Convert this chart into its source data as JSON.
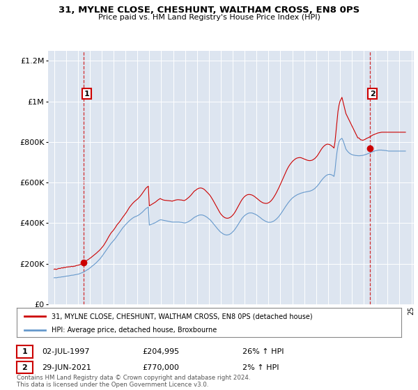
{
  "title": "31, MYLNE CLOSE, CHESHUNT, WALTHAM CROSS, EN8 0PS",
  "subtitle": "Price paid vs. HM Land Registry's House Price Index (HPI)",
  "legend_label_red": "31, MYLNE CLOSE, CHESHUNT, WALTHAM CROSS, EN8 0PS (detached house)",
  "legend_label_blue": "HPI: Average price, detached house, Broxbourne",
  "annotation1_date": "02-JUL-1997",
  "annotation1_price": "£204,995",
  "annotation1_hpi": "26% ↑ HPI",
  "annotation2_date": "29-JUN-2021",
  "annotation2_price": "£770,000",
  "annotation2_hpi": "2% ↑ HPI",
  "footer": "Contains HM Land Registry data © Crown copyright and database right 2024.\nThis data is licensed under the Open Government Licence v3.0.",
  "ylim": [
    0,
    1250000
  ],
  "yticks": [
    0,
    200000,
    400000,
    600000,
    800000,
    1000000,
    1200000
  ],
  "ytick_labels": [
    "£0",
    "£200K",
    "£400K",
    "£600K",
    "£800K",
    "£1M",
    "£1.2M"
  ],
  "x_start_year": 1995,
  "x_end_year": 2025,
  "plot_bg_color": "#dde5f0",
  "fig_bg_color": "#ffffff",
  "red_color": "#cc0000",
  "blue_color": "#6699cc",
  "sale1_year": 1997.5,
  "sale1_value": 204995,
  "sale2_year": 2021.5,
  "sale2_value": 770000,
  "red_line_x": [
    1995.0,
    1995.083,
    1995.167,
    1995.25,
    1995.333,
    1995.417,
    1995.5,
    1995.583,
    1995.667,
    1995.75,
    1995.833,
    1995.917,
    1996.0,
    1996.083,
    1996.167,
    1996.25,
    1996.333,
    1996.417,
    1996.5,
    1996.583,
    1996.667,
    1996.75,
    1996.833,
    1996.917,
    1997.0,
    1997.083,
    1997.167,
    1997.25,
    1997.333,
    1997.417,
    1997.5,
    1997.583,
    1997.667,
    1997.75,
    1997.833,
    1997.917,
    1998.0,
    1998.083,
    1998.167,
    1998.25,
    1998.333,
    1998.417,
    1998.5,
    1998.583,
    1998.667,
    1998.75,
    1998.833,
    1998.917,
    1999.0,
    1999.083,
    1999.167,
    1999.25,
    1999.333,
    1999.417,
    1999.5,
    1999.583,
    1999.667,
    1999.75,
    1999.833,
    1999.917,
    2000.0,
    2000.083,
    2000.167,
    2000.25,
    2000.333,
    2000.417,
    2000.5,
    2000.583,
    2000.667,
    2000.75,
    2000.833,
    2000.917,
    2001.0,
    2001.083,
    2001.167,
    2001.25,
    2001.333,
    2001.417,
    2001.5,
    2001.583,
    2001.667,
    2001.75,
    2001.833,
    2001.917,
    2002.0,
    2002.083,
    2002.167,
    2002.25,
    2002.333,
    2002.417,
    2002.5,
    2002.583,
    2002.667,
    2002.75,
    2002.833,
    2002.917,
    2003.0,
    2003.083,
    2003.167,
    2003.25,
    2003.333,
    2003.417,
    2003.5,
    2003.583,
    2003.667,
    2003.75,
    2003.833,
    2003.917,
    2004.0,
    2004.083,
    2004.167,
    2004.25,
    2004.333,
    2004.417,
    2004.5,
    2004.583,
    2004.667,
    2004.75,
    2004.833,
    2004.917,
    2005.0,
    2005.083,
    2005.167,
    2005.25,
    2005.333,
    2005.417,
    2005.5,
    2005.583,
    2005.667,
    2005.75,
    2005.833,
    2005.917,
    2006.0,
    2006.083,
    2006.167,
    2006.25,
    2006.333,
    2006.417,
    2006.5,
    2006.583,
    2006.667,
    2006.75,
    2006.833,
    2006.917,
    2007.0,
    2007.083,
    2007.167,
    2007.25,
    2007.333,
    2007.417,
    2007.5,
    2007.583,
    2007.667,
    2007.75,
    2007.833,
    2007.917,
    2008.0,
    2008.083,
    2008.167,
    2008.25,
    2008.333,
    2008.417,
    2008.5,
    2008.583,
    2008.667,
    2008.75,
    2008.833,
    2008.917,
    2009.0,
    2009.083,
    2009.167,
    2009.25,
    2009.333,
    2009.417,
    2009.5,
    2009.583,
    2009.667,
    2009.75,
    2009.833,
    2009.917,
    2010.0,
    2010.083,
    2010.167,
    2010.25,
    2010.333,
    2010.417,
    2010.5,
    2010.583,
    2010.667,
    2010.75,
    2010.833,
    2010.917,
    2011.0,
    2011.083,
    2011.167,
    2011.25,
    2011.333,
    2011.417,
    2011.5,
    2011.583,
    2011.667,
    2011.75,
    2011.833,
    2011.917,
    2012.0,
    2012.083,
    2012.167,
    2012.25,
    2012.333,
    2012.417,
    2012.5,
    2012.583,
    2012.667,
    2012.75,
    2012.833,
    2012.917,
    2013.0,
    2013.083,
    2013.167,
    2013.25,
    2013.333,
    2013.417,
    2013.5,
    2013.583,
    2013.667,
    2013.75,
    2013.833,
    2013.917,
    2014.0,
    2014.083,
    2014.167,
    2014.25,
    2014.333,
    2014.417,
    2014.5,
    2014.583,
    2014.667,
    2014.75,
    2014.833,
    2014.917,
    2015.0,
    2015.083,
    2015.167,
    2015.25,
    2015.333,
    2015.417,
    2015.5,
    2015.583,
    2015.667,
    2015.75,
    2015.833,
    2015.917,
    2016.0,
    2016.083,
    2016.167,
    2016.25,
    2016.333,
    2016.417,
    2016.5,
    2016.583,
    2016.667,
    2016.75,
    2016.833,
    2016.917,
    2017.0,
    2017.083,
    2017.167,
    2017.25,
    2017.333,
    2017.417,
    2017.5,
    2017.583,
    2017.667,
    2017.75,
    2017.833,
    2017.917,
    2018.0,
    2018.083,
    2018.167,
    2018.25,
    2018.333,
    2018.417,
    2018.5,
    2018.583,
    2018.667,
    2018.75,
    2018.833,
    2018.917,
    2019.0,
    2019.083,
    2019.167,
    2019.25,
    2019.333,
    2019.417,
    2019.5,
    2019.583,
    2019.667,
    2019.75,
    2019.833,
    2019.917,
    2020.0,
    2020.083,
    2020.167,
    2020.25,
    2020.333,
    2020.417,
    2020.5,
    2020.583,
    2020.667,
    2020.75,
    2020.833,
    2020.917,
    2021.0,
    2021.083,
    2021.167,
    2021.25,
    2021.333,
    2021.417,
    2021.5,
    2021.583,
    2021.667,
    2021.75,
    2021.833,
    2021.917,
    2022.0,
    2022.083,
    2022.167,
    2022.25,
    2022.333,
    2022.417,
    2022.5,
    2022.583,
    2022.667,
    2022.75,
    2022.833,
    2022.917,
    2023.0,
    2023.083,
    2023.167,
    2023.25,
    2023.333,
    2023.417,
    2023.5,
    2023.583,
    2023.667,
    2023.75,
    2023.833,
    2023.917,
    2024.0,
    2024.083,
    2024.167,
    2024.25,
    2024.333,
    2024.417,
    2024.5
  ],
  "red_line_y": [
    172000,
    174000,
    171000,
    173000,
    175000,
    177000,
    176000,
    178000,
    180000,
    178000,
    182000,
    180000,
    182000,
    184000,
    183000,
    185000,
    184000,
    186000,
    187000,
    185000,
    188000,
    187000,
    190000,
    191000,
    192000,
    193000,
    195000,
    197000,
    200000,
    202000,
    204995,
    208000,
    212000,
    216000,
    219000,
    222000,
    226000,
    229000,
    233000,
    237000,
    241000,
    245000,
    249000,
    253000,
    258000,
    262000,
    267000,
    272000,
    278000,
    284000,
    290000,
    298000,
    306000,
    314000,
    323000,
    332000,
    340000,
    348000,
    355000,
    360000,
    366000,
    373000,
    380000,
    388000,
    395000,
    400000,
    406000,
    413000,
    420000,
    427000,
    434000,
    440000,
    447000,
    454000,
    462000,
    470000,
    478000,
    484000,
    490000,
    496000,
    501000,
    506000,
    510000,
    514000,
    518000,
    523000,
    528000,
    534000,
    540000,
    547000,
    554000,
    561000,
    568000,
    574000,
    578000,
    582000,
    485000,
    488000,
    491000,
    494000,
    497000,
    500000,
    503000,
    507000,
    511000,
    515000,
    518000,
    521000,
    518000,
    516000,
    514000,
    513000,
    512000,
    512000,
    511000,
    511000,
    510000,
    510000,
    509000,
    508000,
    510000,
    511000,
    513000,
    514000,
    515000,
    515000,
    515000,
    514000,
    514000,
    513000,
    512000,
    511000,
    513000,
    516000,
    520000,
    524000,
    528000,
    533000,
    538000,
    544000,
    550000,
    556000,
    560000,
    563000,
    567000,
    570000,
    572000,
    573000,
    573000,
    572000,
    570000,
    567000,
    563000,
    558000,
    553000,
    548000,
    543000,
    537000,
    530000,
    522000,
    514000,
    505000,
    496000,
    487000,
    478000,
    469000,
    460000,
    452000,
    445000,
    439000,
    434000,
    430000,
    427000,
    425000,
    424000,
    424000,
    425000,
    427000,
    430000,
    434000,
    439000,
    445000,
    452000,
    460000,
    469000,
    478000,
    487000,
    496000,
    505000,
    513000,
    520000,
    526000,
    531000,
    535000,
    538000,
    540000,
    541000,
    541000,
    540000,
    539000,
    537000,
    534000,
    531000,
    527000,
    523000,
    519000,
    515000,
    511000,
    507000,
    504000,
    501000,
    499000,
    498000,
    497000,
    497000,
    498000,
    500000,
    503000,
    507000,
    512000,
    518000,
    525000,
    533000,
    541000,
    550000,
    560000,
    570000,
    580000,
    591000,
    602000,
    614000,
    625000,
    636000,
    647000,
    657000,
    667000,
    676000,
    684000,
    691000,
    697000,
    703000,
    708000,
    712000,
    716000,
    719000,
    721000,
    722000,
    723000,
    723000,
    722000,
    720000,
    718000,
    716000,
    714000,
    712000,
    710000,
    709000,
    708000,
    708000,
    709000,
    710000,
    713000,
    716000,
    720000,
    725000,
    731000,
    738000,
    746000,
    754000,
    762000,
    769000,
    775000,
    780000,
    784000,
    787000,
    789000,
    789000,
    788000,
    786000,
    783000,
    779000,
    775000,
    770000,
    800000,
    850000,
    900000,
    950000,
    980000,
    1000000,
    1010000,
    1020000,
    1000000,
    980000,
    960000,
    940000,
    930000,
    920000,
    910000,
    900000,
    890000,
    880000,
    870000,
    860000,
    850000,
    840000,
    830000,
    820000,
    820000,
    815000,
    810000,
    810000,
    808000,
    810000,
    812000,
    815000,
    818000,
    820000,
    822000,
    825000,
    828000,
    831000,
    834000,
    836000,
    838000,
    840000,
    842000,
    844000,
    845000,
    846000,
    847000,
    848000,
    848000,
    848000,
    848000,
    848000,
    848000,
    848000,
    848000,
    848000,
    848000,
    848000,
    848000,
    848000,
    848000,
    848000,
    848000,
    848000,
    848000,
    848000,
    848000,
    848000,
    848000,
    848000,
    848000,
    848000
  ],
  "blue_line_y": [
    130000,
    131000,
    130000,
    131000,
    132000,
    133000,
    133000,
    134000,
    135000,
    135000,
    136000,
    137000,
    138000,
    139000,
    139000,
    140000,
    141000,
    142000,
    143000,
    143000,
    144000,
    145000,
    146000,
    147000,
    148000,
    149000,
    151000,
    153000,
    155000,
    157000,
    159000,
    162000,
    165000,
    168000,
    171000,
    174000,
    178000,
    182000,
    186000,
    190000,
    194000,
    198000,
    202000,
    207000,
    212000,
    217000,
    222000,
    228000,
    234000,
    241000,
    248000,
    255000,
    262000,
    269000,
    276000,
    283000,
    290000,
    297000,
    303000,
    308000,
    314000,
    320000,
    326000,
    333000,
    340000,
    347000,
    354000,
    361000,
    368000,
    375000,
    381000,
    386000,
    392000,
    397000,
    402000,
    407000,
    412000,
    416000,
    420000,
    424000,
    427000,
    430000,
    432000,
    434000,
    436000,
    439000,
    442000,
    446000,
    450000,
    454000,
    459000,
    464000,
    469000,
    473000,
    476000,
    479000,
    390000,
    392000,
    394000,
    396000,
    398000,
    400000,
    402000,
    405000,
    408000,
    411000,
    414000,
    416000,
    416000,
    415000,
    414000,
    413000,
    412000,
    411000,
    410000,
    409000,
    408000,
    407000,
    406000,
    405000,
    405000,
    405000,
    405000,
    405000,
    405000,
    405000,
    405000,
    404000,
    404000,
    403000,
    402000,
    401000,
    401000,
    402000,
    404000,
    406000,
    409000,
    412000,
    415000,
    419000,
    423000,
    427000,
    430000,
    432000,
    435000,
    437000,
    439000,
    440000,
    440000,
    440000,
    439000,
    437000,
    435000,
    432000,
    429000,
    425000,
    421000,
    417000,
    412000,
    406000,
    400000,
    394000,
    388000,
    382000,
    376000,
    370000,
    365000,
    359000,
    355000,
    351000,
    348000,
    345000,
    343000,
    342000,
    341000,
    342000,
    343000,
    345000,
    348000,
    352000,
    357000,
    362000,
    368000,
    375000,
    382000,
    390000,
    398000,
    406000,
    414000,
    421000,
    427000,
    432000,
    437000,
    441000,
    444000,
    447000,
    449000,
    450000,
    450000,
    450000,
    449000,
    447000,
    445000,
    443000,
    440000,
    437000,
    433000,
    430000,
    426000,
    422000,
    418000,
    415000,
    412000,
    409000,
    407000,
    405000,
    404000,
    404000,
    404000,
    405000,
    407000,
    409000,
    412000,
    416000,
    420000,
    425000,
    430000,
    436000,
    443000,
    450000,
    457000,
    465000,
    472000,
    480000,
    487000,
    494000,
    501000,
    507000,
    513000,
    518000,
    523000,
    527000,
    531000,
    534000,
    537000,
    540000,
    542000,
    544000,
    546000,
    548000,
    549000,
    551000,
    552000,
    553000,
    554000,
    555000,
    556000,
    557000,
    558000,
    560000,
    562000,
    565000,
    568000,
    572000,
    577000,
    582000,
    588000,
    594000,
    601000,
    608000,
    614000,
    620000,
    625000,
    630000,
    634000,
    637000,
    639000,
    640000,
    640000,
    639000,
    637000,
    634000,
    630000,
    660000,
    710000,
    750000,
    780000,
    800000,
    810000,
    815000,
    818000,
    808000,
    795000,
    780000,
    765000,
    758000,
    752000,
    747000,
    743000,
    740000,
    738000,
    736000,
    735000,
    734000,
    733000,
    733000,
    732000,
    732000,
    732000,
    733000,
    733000,
    734000,
    735000,
    737000,
    738000,
    740000,
    742000,
    744000,
    746000,
    748000,
    750000,
    752000,
    754000,
    756000,
    757000,
    758000,
    759000,
    760000,
    760000,
    760000,
    760000,
    759000,
    759000,
    758000,
    758000,
    757000,
    756000,
    755000,
    755000,
    755000,
    755000,
    755000,
    755000,
    755000,
    755000,
    755000,
    755000,
    755000,
    755000,
    755000,
    755000,
    755000,
    755000,
    755000,
    755000
  ]
}
